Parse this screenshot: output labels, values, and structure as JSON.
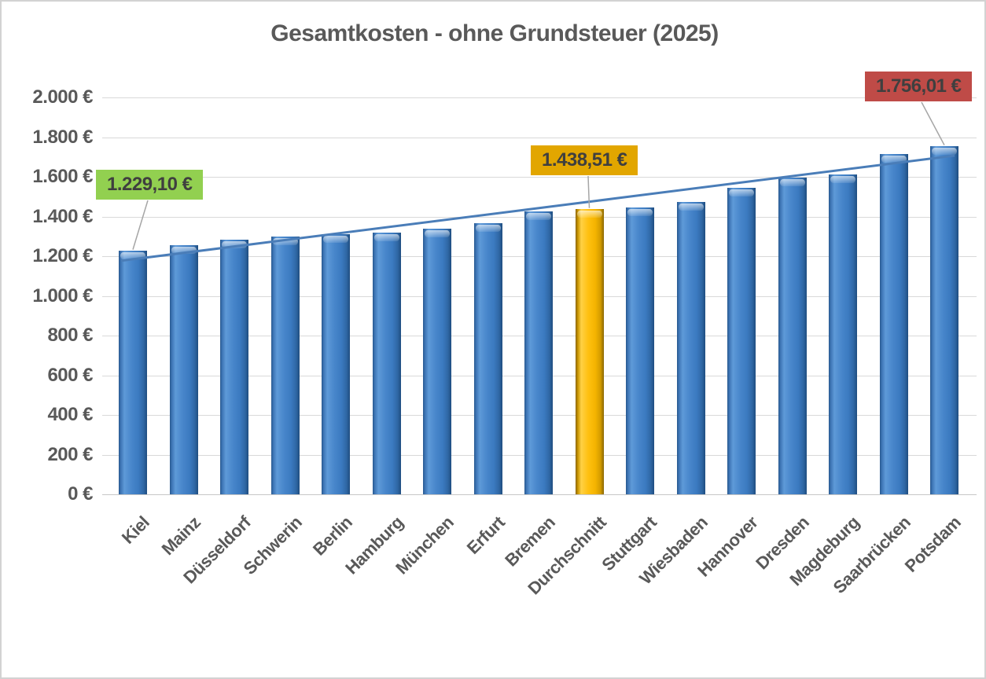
{
  "window": {
    "background": "#ffffff",
    "border_color": "#d2d2d2"
  },
  "chart_data": {
    "type": "bar",
    "title": "Gesamtkosten - ohne Grundsteuer (2025)",
    "categories": [
      "Kiel",
      "Mainz",
      "Düsseldorf",
      "Schwerin",
      "Berlin",
      "Hamburg",
      "München",
      "Erfurt",
      "Bremen",
      "Durchschnitt",
      "Stuttgart",
      "Wiesbaden",
      "Hannover",
      "Dresden",
      "Magdeburg",
      "Saarbrücken",
      "Potsdam"
    ],
    "values": [
      1229.1,
      1255,
      1285,
      1300,
      1310,
      1318,
      1340,
      1366,
      1425,
      1438.51,
      1444,
      1472,
      1545,
      1595,
      1610,
      1716,
      1756.01
    ],
    "unit": "€",
    "xlabel": "",
    "ylabel": "",
    "ylim": [
      0,
      2000
    ],
    "ytick_step": 200,
    "ytick_labels": [
      "0 €",
      "200 €",
      "400 €",
      "600 €",
      "800 €",
      "1.000 €",
      "1.200 €",
      "1.400 €",
      "1.600 €",
      "1.800 €",
      "2.000 €"
    ],
    "grid": "horizontal",
    "legend_position": "none",
    "bar_color_default": "#3d7cc9",
    "bar_color_highlight": "#ffc000",
    "highlight_index": 9,
    "axis_text_color": "#595959",
    "gridline_color": "#d9d9d9",
    "trendline": {
      "shape": "linear",
      "from_value": 1177,
      "to_value": 1707,
      "color": "#4a7db8"
    },
    "callouts": [
      {
        "label": "1.229,10 €",
        "target_category": "Kiel",
        "target_index": 0,
        "box_color": "#92d050",
        "text_color": "#3f3f3f"
      },
      {
        "label": "1.438,51 €",
        "target_category": "Durchschnitt",
        "target_index": 9,
        "box_color": "#e2a600",
        "text_color": "#3f3f3f"
      },
      {
        "label": "1.756,01 €",
        "target_category": "Potsdam",
        "target_index": 16,
        "box_color": "#bf4b47",
        "text_color": "#3f3f3f"
      }
    ],
    "leader_line_color": "#a6a6a6"
  }
}
